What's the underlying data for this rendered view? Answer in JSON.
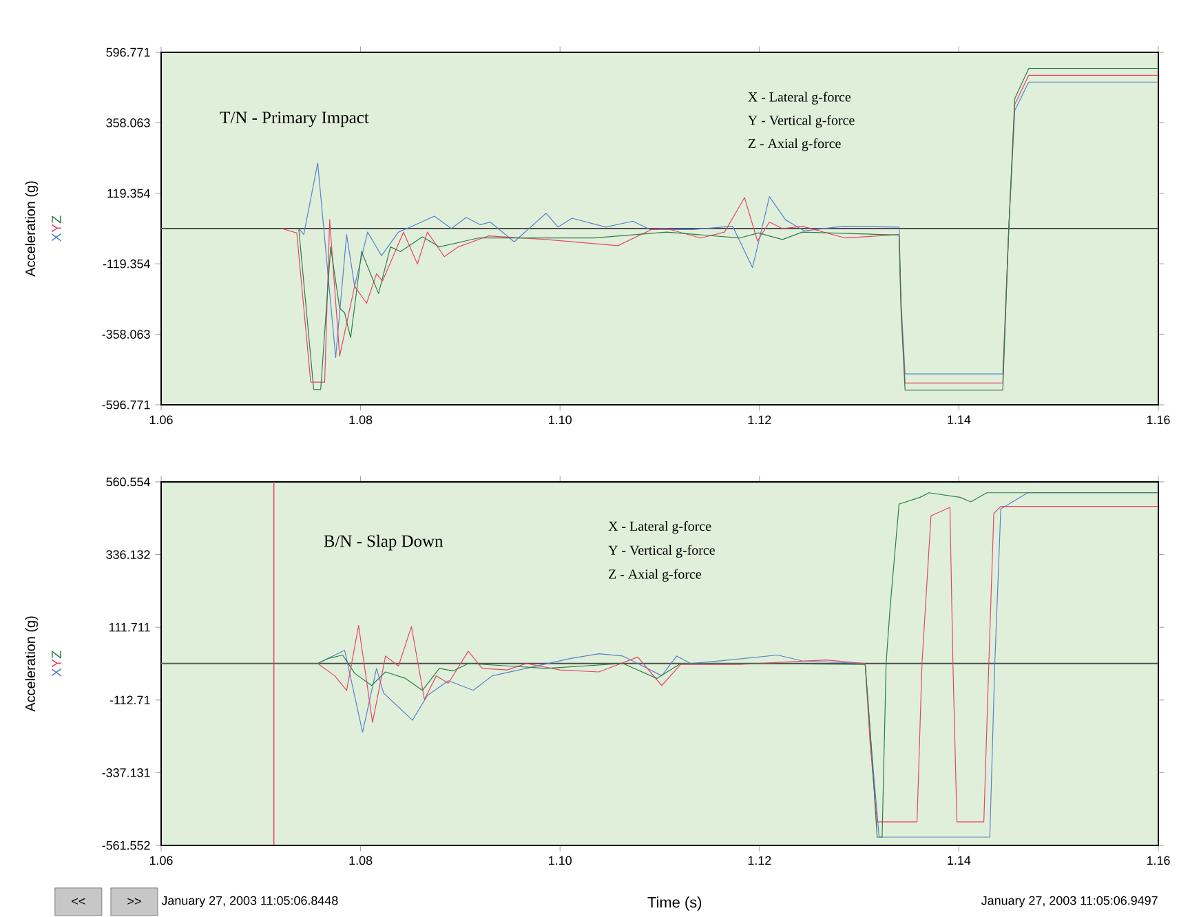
{
  "chart_data": [
    {
      "type": "line",
      "title": "T/N - Primary Impact",
      "ylabel": "Acceleration (g)",
      "xlim": [
        1.06,
        1.16
      ],
      "ylim": [
        -596.771,
        596.771
      ],
      "xticks": [
        {
          "value": 1.06,
          "label": "1.06"
        },
        {
          "value": 1.08,
          "label": "1.08"
        },
        {
          "value": 1.1,
          "label": "1.10"
        },
        {
          "value": 1.12,
          "label": "1.12"
        },
        {
          "value": 1.14,
          "label": "1.14"
        },
        {
          "value": 1.16,
          "label": "1.16"
        }
      ],
      "yticks": [
        -596.771,
        -358.063,
        -119.354,
        119.354,
        358.063,
        596.771
      ],
      "annotations": [
        "X - Lateral  g-force",
        "Y - Vertical g-force",
        "Z - Axial g-force"
      ],
      "ref_lines": [
        {
          "axis": "y",
          "value": 0,
          "color": "#4d4d4d"
        }
      ],
      "series": [
        {
          "name": "X",
          "color": "#5a7fd0",
          "x": [
            1.0738,
            1.0743,
            1.0757,
            1.0775,
            1.0786,
            1.0794,
            1.0807,
            1.0821,
            1.0838,
            1.0852,
            1.0874,
            1.0891,
            1.0906,
            1.092,
            1.093,
            1.0954,
            1.0986,
            1.0998,
            1.1012,
            1.1046,
            1.1073,
            1.109,
            1.1134,
            1.1173,
            1.1193,
            1.121,
            1.1226,
            1.1245,
            1.1284,
            1.134,
            1.1342,
            1.1346,
            1.1444,
            1.145,
            1.1456,
            1.147,
            1.16
          ],
          "values": [
            0,
            -20,
            222,
            -437,
            -20,
            -195,
            -12,
            -92,
            -12,
            8,
            42,
            0,
            38,
            13,
            22,
            -45,
            52,
            5,
            35,
            5,
            25,
            -3,
            -3,
            8,
            -132,
            108,
            30,
            -8,
            8,
            5,
            -250,
            -492,
            -492,
            0,
            400,
            496,
            496
          ]
        },
        {
          "name": "Y",
          "color": "#e8436e",
          "x": [
            1.0721,
            1.0736,
            1.075,
            1.0764,
            1.0769,
            1.0779,
            1.0794,
            1.0806,
            1.0816,
            1.0822,
            1.0843,
            1.0857,
            1.0867,
            1.0884,
            1.0898,
            1.0928,
            1.0986,
            1.1058,
            1.1092,
            1.1107,
            1.1141,
            1.1165,
            1.1185,
            1.1198,
            1.121,
            1.1223,
            1.1243,
            1.1286,
            1.134,
            1.1342,
            1.1346,
            1.1444,
            1.145,
            1.1456,
            1.147,
            1.16
          ],
          "values": [
            0,
            -15,
            -520,
            -520,
            30,
            -432,
            -195,
            -253,
            -153,
            -178,
            -12,
            -120,
            -12,
            -95,
            -62,
            -25,
            -37,
            -58,
            -3,
            0,
            -32,
            -12,
            105,
            -42,
            22,
            0,
            8,
            -32,
            -20,
            -270,
            -523,
            -523,
            0,
            420,
            519,
            519
          ]
        },
        {
          "name": "Z",
          "color": "#2e7d46",
          "x": [
            1.0738,
            1.0753,
            1.076,
            1.077,
            1.0779,
            1.0784,
            1.079,
            1.0801,
            1.0818,
            1.083,
            1.084,
            1.0862,
            1.0879,
            1.0918,
            1.1034,
            1.1107,
            1.118,
            1.1199,
            1.1223,
            1.1243,
            1.134,
            1.1342,
            1.1346,
            1.1444,
            1.145,
            1.1456,
            1.147,
            1.16
          ],
          "values": [
            0,
            -545,
            -545,
            -62,
            -270,
            -285,
            -370,
            -78,
            -220,
            -62,
            -78,
            -28,
            -62,
            -32,
            -32,
            -12,
            -32,
            -15,
            -37,
            -12,
            -22,
            -280,
            -547,
            -547,
            0,
            440,
            542,
            542
          ]
        }
      ]
    },
    {
      "type": "line",
      "title": "B/N - Slap Down",
      "ylabel": "Acceleration (g)",
      "xlabel": "Time (s)",
      "xlim": [
        1.06,
        1.16
      ],
      "ylim": [
        -561.552,
        560.554
      ],
      "xticks": [
        {
          "value": 1.06,
          "label": "1.06"
        },
        {
          "value": 1.08,
          "label": "1.08"
        },
        {
          "value": 1.1,
          "label": "1.10"
        },
        {
          "value": 1.12,
          "label": "1.12"
        },
        {
          "value": 1.14,
          "label": "1.14"
        },
        {
          "value": 1.16,
          "label": "1.16"
        }
      ],
      "yticks": [
        -561.552,
        -337.131,
        -112.71,
        111.711,
        336.132,
        560.554
      ],
      "annotations": [
        "X - Lateral  g-force",
        "Y - Vertical g-force",
        "Z - Axial g-force",
        "January 27, 2003 11:05:06.8448",
        "January 27, 2003 11:05:06.9497",
        "<<",
        ">>"
      ],
      "ref_lines": [
        {
          "axis": "y",
          "value": 0,
          "color": "#4d4d4d"
        },
        {
          "axis": "x",
          "value": 1.0713,
          "color": "#e8436e"
        }
      ],
      "series": [
        {
          "name": "X",
          "color": "#5a7fd0",
          "x": [
            1.06,
            1.0757,
            1.0784,
            1.0802,
            1.0816,
            1.0823,
            1.0852,
            1.0867,
            1.0888,
            1.0913,
            1.0932,
            1.0966,
            1.101,
            1.1039,
            1.1063,
            1.1083,
            1.1102,
            1.1117,
            1.1131,
            1.117,
            1.1218,
            1.1243,
            1.1306,
            1.1312,
            1.132,
            1.1431,
            1.1436,
            1.1442,
            1.1469,
            1.16
          ],
          "values": [
            0,
            0,
            41,
            -212,
            -15,
            -91,
            -175,
            -99,
            -53,
            -83,
            -38,
            -15,
            15,
            30,
            23,
            -8,
            -38,
            23,
            0,
            11,
            26,
            8,
            0,
            -250,
            -536,
            -536,
            0,
            477,
            527,
            527
          ]
        },
        {
          "name": "Y",
          "color": "#e8436e",
          "x": [
            1.06,
            1.0757,
            1.0774,
            1.0786,
            1.0798,
            1.0812,
            1.0825,
            1.0838,
            1.0851,
            1.0864,
            1.0876,
            1.0888,
            1.0908,
            1.0922,
            1.0947,
            1.0966,
            1.1,
            1.1039,
            1.1078,
            1.1102,
            1.1121,
            1.118,
            1.1267,
            1.1306,
            1.1311,
            1.1318,
            1.1358,
            1.1363,
            1.1372,
            1.1391,
            1.1394,
            1.1398,
            1.1425,
            1.143,
            1.1435,
            1.1442,
            1.16
          ],
          "values": [
            0,
            0,
            -38,
            -83,
            117,
            -182,
            23,
            -8,
            114,
            -111,
            -38,
            -61,
            38,
            -15,
            -20,
            0,
            -20,
            -26,
            20,
            -68,
            -3,
            -3,
            11,
            0,
            -250,
            -489,
            -489,
            0,
            456,
            482,
            0,
            -489,
            -489,
            0,
            463,
            485,
            485
          ]
        },
        {
          "name": "Z",
          "color": "#2e7d46",
          "x": [
            1.06,
            1.0757,
            1.0767,
            1.0782,
            1.0794,
            1.0811,
            1.0825,
            1.0845,
            1.0862,
            1.0879,
            1.0893,
            1.0908,
            1.0986,
            1.1063,
            1.1097,
            1.1121,
            1.118,
            1.1306,
            1.1312,
            1.1318,
            1.1323,
            1.1327,
            1.1331,
            1.134,
            1.1361,
            1.137,
            1.1401,
            1.1412,
            1.1428,
            1.16
          ],
          "values": [
            0,
            0,
            15,
            26,
            -30,
            -68,
            -26,
            -46,
            -83,
            -15,
            -23,
            0,
            -15,
            0,
            -46,
            0,
            0,
            -3,
            -250,
            -536,
            -536,
            0,
            173,
            492,
            513,
            527,
            513,
            499,
            527,
            527
          ]
        }
      ]
    }
  ]
}
